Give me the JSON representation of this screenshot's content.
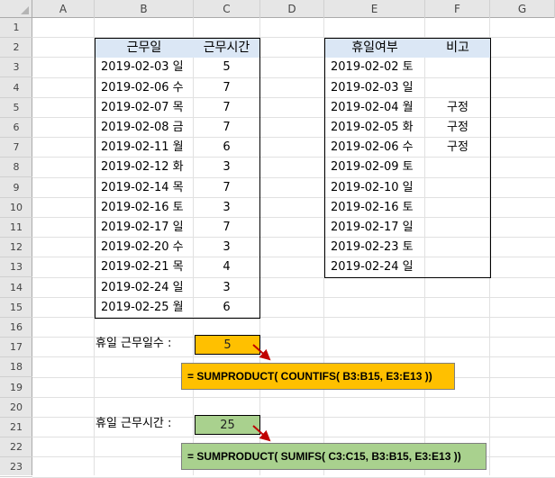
{
  "columns": [
    "A",
    "B",
    "C",
    "D",
    "E",
    "F",
    "G"
  ],
  "rows": [
    "1",
    "2",
    "3",
    "4",
    "5",
    "6",
    "7",
    "8",
    "9",
    "10",
    "11",
    "12",
    "13",
    "14",
    "15",
    "16",
    "17",
    "18",
    "19",
    "20",
    "21",
    "22",
    "23"
  ],
  "work_table": {
    "headers": [
      "근무일",
      "근무시간"
    ],
    "rows": [
      [
        "2019-02-03 일",
        "5"
      ],
      [
        "2019-02-06 수",
        "7"
      ],
      [
        "2019-02-07 목",
        "7"
      ],
      [
        "2019-02-08 금",
        "7"
      ],
      [
        "2019-02-11 월",
        "6"
      ],
      [
        "2019-02-12 화",
        "3"
      ],
      [
        "2019-02-14 목",
        "7"
      ],
      [
        "2019-02-16 토",
        "3"
      ],
      [
        "2019-02-17 일",
        "7"
      ],
      [
        "2019-02-20 수",
        "3"
      ],
      [
        "2019-02-21 목",
        "4"
      ],
      [
        "2019-02-24 일",
        "3"
      ],
      [
        "2019-02-25 월",
        "6"
      ]
    ]
  },
  "holiday_table": {
    "headers": [
      "휴일여부",
      "비고"
    ],
    "rows": [
      [
        "2019-02-02 토",
        ""
      ],
      [
        "2019-02-03 일",
        ""
      ],
      [
        "2019-02-04 월",
        "구정"
      ],
      [
        "2019-02-05 화",
        "구정"
      ],
      [
        "2019-02-06 수",
        "구정"
      ],
      [
        "2019-02-09 토",
        ""
      ],
      [
        "2019-02-10 일",
        ""
      ],
      [
        "2019-02-16 토",
        ""
      ],
      [
        "2019-02-17 일",
        ""
      ],
      [
        "2019-02-23 토",
        ""
      ],
      [
        "2019-02-24 일",
        ""
      ]
    ]
  },
  "results": {
    "days_label": "휴일 근무일수 :",
    "days_value": "5",
    "days_formula": "= SUMPRODUCT( COUNTIFS( B3:B15, E3:E13 ))",
    "hours_label": "휴일 근무시간 :",
    "hours_value": "25",
    "hours_formula": "= SUMPRODUCT( SUMIFS( C3:C15, B3:B15, E3:E13 ))"
  },
  "colors": {
    "header_fill": "#dbe7f5",
    "orange": "#ffc000",
    "green": "#a9d18e",
    "arrow": "#c00000"
  }
}
